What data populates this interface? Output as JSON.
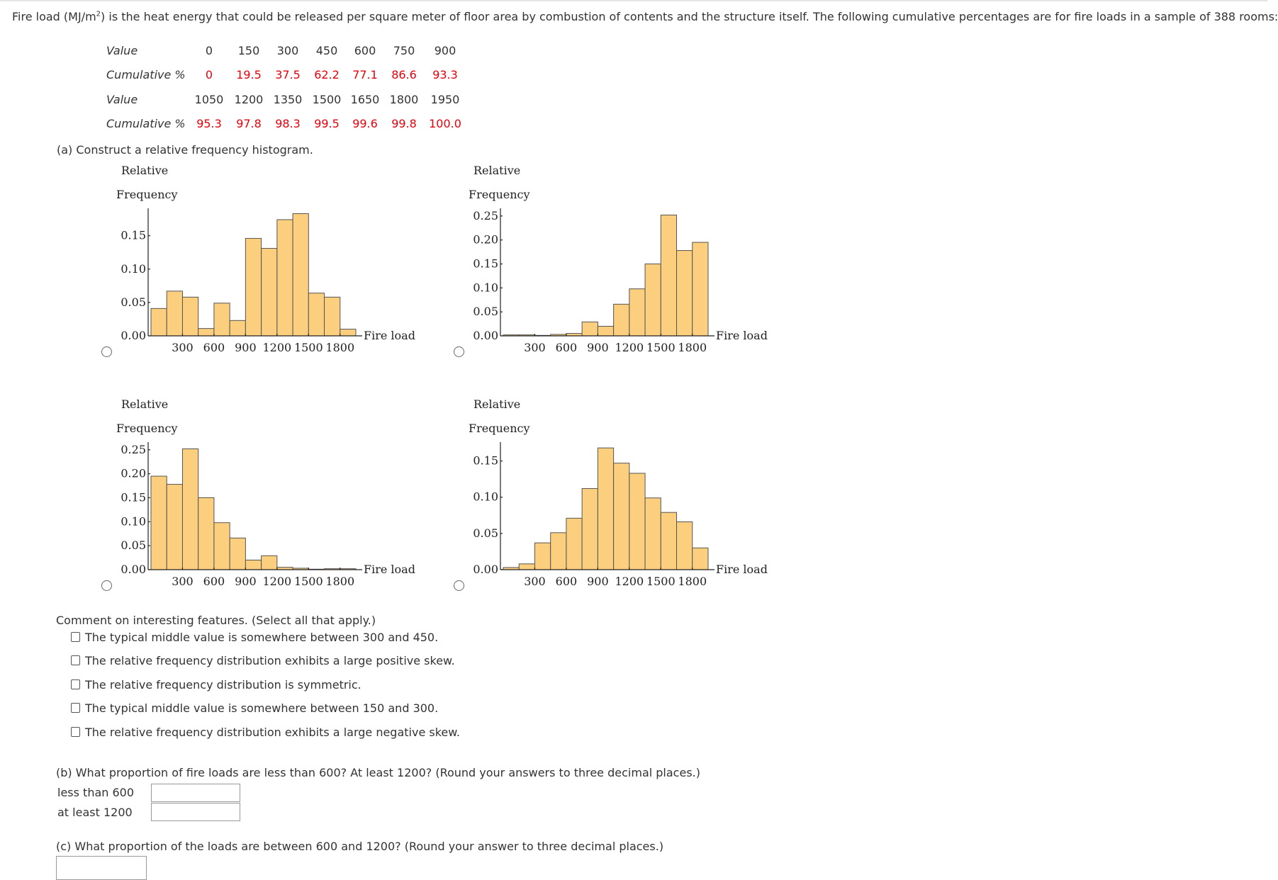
{
  "intro": {
    "pre": "Fire load (MJ/m",
    "sup": "2",
    "post": ") is the heat energy that could be released per square meter of floor area by combustion of contents and the structure itself. The following cumulative percentages are for fire loads in a sample of 388 rooms:"
  },
  "table": {
    "rows": [
      {
        "label": "Value",
        "values": [
          "0",
          "150",
          "300",
          "450",
          "600",
          "750",
          "900"
        ],
        "color": "#333333"
      },
      {
        "label": "Cumulative %",
        "values": [
          "0",
          "19.5",
          "37.5",
          "62.2",
          "77.1",
          "86.6",
          "93.3"
        ],
        "color": "#e8000b"
      },
      {
        "label": "Value",
        "values": [
          "1050",
          "1200",
          "1350",
          "1500",
          "1650",
          "1800",
          "1950"
        ],
        "color": "#333333"
      },
      {
        "label": "Cumulative %",
        "values": [
          "95.3",
          "97.8",
          "98.3",
          "99.5",
          "99.6",
          "99.8",
          "100.0"
        ],
        "color": "#e8000b"
      }
    ]
  },
  "part_a": {
    "prompt": "(a) Construct a relative frequency histogram."
  },
  "chart_data": [
    {
      "type": "bar",
      "ylabel_line1": "Relative",
      "ylabel_line2": "Frequency",
      "xlabel": "Fire load",
      "bin_edges_start": 0,
      "bin_width": 150,
      "values": [
        0.041,
        0.067,
        0.058,
        0.011,
        0.049,
        0.023,
        0.146,
        0.131,
        0.174,
        0.183,
        0.064,
        0.058,
        0.01
      ],
      "xticks": [
        "300",
        "600",
        "900",
        "1200",
        "1500",
        "1800"
      ],
      "yticks": [
        "0.00",
        "0.05",
        "0.10",
        "0.15"
      ],
      "ylim": [
        0,
        0.191
      ],
      "xlim": [
        0,
        1950
      ],
      "bar_color": "#fccf7e"
    },
    {
      "type": "bar",
      "ylabel_line1": "Relative",
      "ylabel_line2": "Frequency",
      "xlabel": "Fire load",
      "bin_edges_start": 0,
      "bin_width": 150,
      "values": [
        0.002,
        0.002,
        0.001,
        0.003,
        0.005,
        0.029,
        0.02,
        0.066,
        0.098,
        0.15,
        0.252,
        0.178,
        0.195
      ],
      "xticks": [
        "300",
        "600",
        "900",
        "1200",
        "1500",
        "1800"
      ],
      "yticks": [
        "0.00",
        "0.05",
        "0.10",
        "0.15",
        "0.20",
        "0.25"
      ],
      "ylim": [
        0,
        0.266
      ],
      "xlim": [
        0,
        1950
      ],
      "bar_color": "#fccf7e"
    },
    {
      "type": "bar",
      "ylabel_line1": "Relative",
      "ylabel_line2": "Frequency",
      "xlabel": "Fire load",
      "bin_edges_start": 0,
      "bin_width": 150,
      "values": [
        0.195,
        0.178,
        0.252,
        0.15,
        0.098,
        0.066,
        0.02,
        0.029,
        0.005,
        0.003,
        0.001,
        0.002,
        0.002
      ],
      "xticks": [
        "300",
        "600",
        "900",
        "1200",
        "1500",
        "1800"
      ],
      "yticks": [
        "0.00",
        "0.05",
        "0.10",
        "0.15",
        "0.20",
        "0.25"
      ],
      "ylim": [
        0,
        0.266
      ],
      "xlim": [
        0,
        1950
      ],
      "bar_color": "#fccf7e"
    },
    {
      "type": "bar",
      "ylabel_line1": "Relative",
      "ylabel_line2": "Frequency",
      "xlabel": "Fire load",
      "bin_edges_start": 0,
      "bin_width": 150,
      "values": [
        0.003,
        0.008,
        0.037,
        0.051,
        0.071,
        0.112,
        0.168,
        0.147,
        0.133,
        0.099,
        0.079,
        0.066,
        0.03
      ],
      "xticks": [
        "300",
        "600",
        "900",
        "1200",
        "1500",
        "1800"
      ],
      "yticks": [
        "0.00",
        "0.05",
        "0.10",
        "0.15"
      ],
      "ylim": [
        0,
        0.176
      ],
      "xlim": [
        0,
        1950
      ],
      "bar_color": "#fccf7e"
    }
  ],
  "features": {
    "prompt": "Comment on interesting features. (Select all that apply.)",
    "options": [
      "The typical middle value is somewhere between 300 and 450.",
      "The relative frequency distribution exhibits a large positive skew.",
      "The relative frequency distribution is symmetric.",
      "The typical middle value is somewhere between 150 and 300.",
      "The relative frequency distribution exhibits a large negative skew."
    ]
  },
  "part_b": {
    "prompt": "(b) What proportion of fire loads are less than 600? At least 1200? (Round your answers to three decimal places.)",
    "less_label": "less than 600",
    "least_label": "at least 1200",
    "less_value": "",
    "least_value": ""
  },
  "part_c": {
    "prompt": "(c) What proportion of the loads are between 600 and 1200? (Round your answer to three decimal places.)",
    "value": ""
  }
}
